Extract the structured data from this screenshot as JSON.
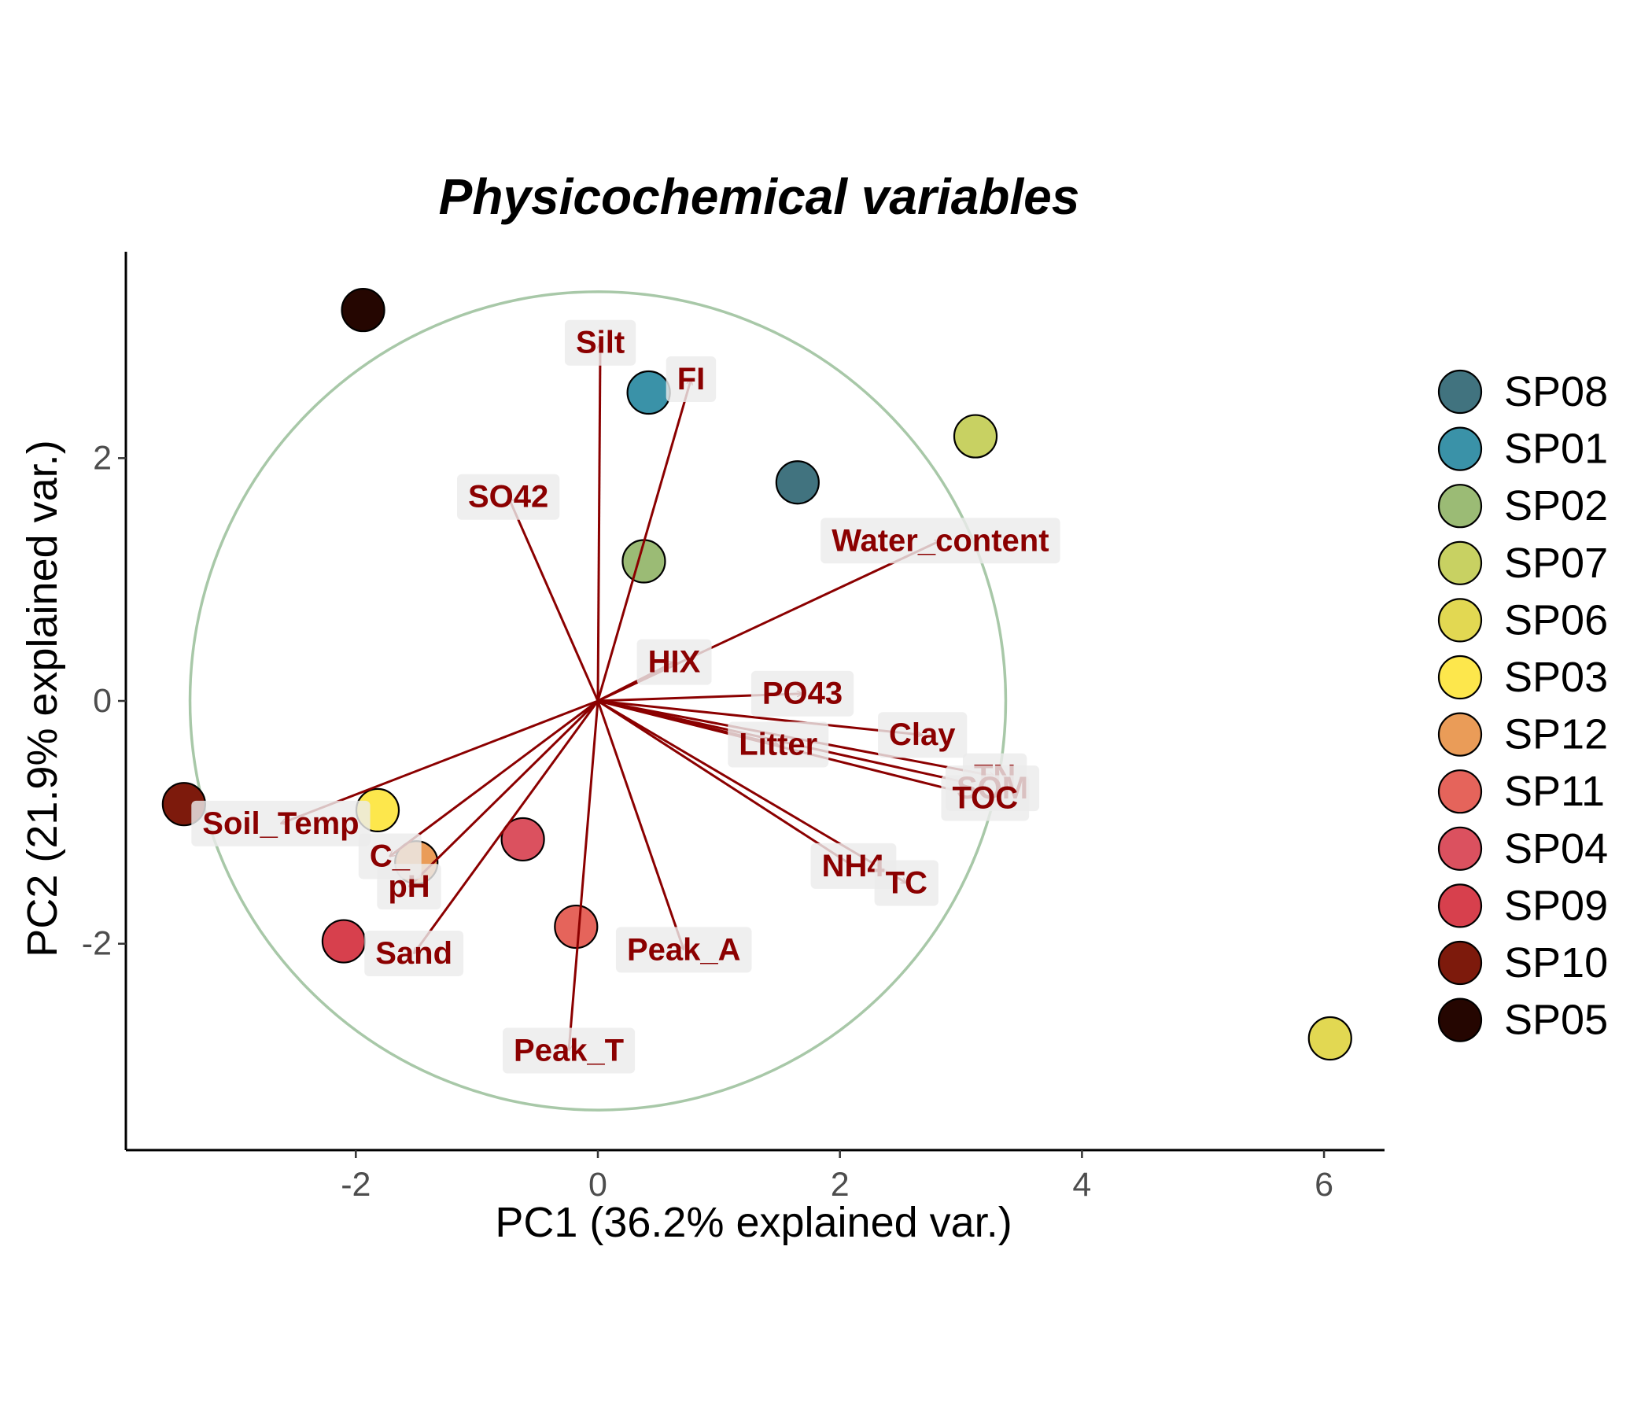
{
  "chart_data": {
    "type": "scatter",
    "subtype": "pca-biplot",
    "title": "Physicochemical variables",
    "xlabel": "PC1 (36.2% explained var.)",
    "ylabel": "PC2 (21.9% explained var.)",
    "xlim": [
      -3.9,
      6.5
    ],
    "ylim": [
      -3.7,
      3.7
    ],
    "xticks": [
      -2,
      0,
      2,
      4,
      6
    ],
    "yticks": [
      -2,
      0,
      2
    ],
    "grid": false,
    "legend_position": "right",
    "correlation_circle": {
      "radius": 3.37,
      "color": "#a8c8a8"
    },
    "arrow_color": "#8b0000",
    "points": [
      {
        "name": "SP08",
        "x": 1.65,
        "y": 1.8,
        "color": "#41737f"
      },
      {
        "name": "SP01",
        "x": 0.42,
        "y": 2.54,
        "color": "#3a92a8"
      },
      {
        "name": "SP02",
        "x": 0.38,
        "y": 1.15,
        "color": "#9bbb75"
      },
      {
        "name": "SP07",
        "x": 3.12,
        "y": 2.18,
        "color": "#c8d162"
      },
      {
        "name": "SP06",
        "x": 6.05,
        "y": -2.78,
        "color": "#e2d852"
      },
      {
        "name": "SP03",
        "x": -1.82,
        "y": -0.9,
        "color": "#fde74c"
      },
      {
        "name": "SP12",
        "x": -1.5,
        "y": -1.33,
        "color": "#ea9c58"
      },
      {
        "name": "SP11",
        "x": -0.18,
        "y": -1.86,
        "color": "#e5645b"
      },
      {
        "name": "SP04",
        "x": -0.62,
        "y": -1.14,
        "color": "#db515f"
      },
      {
        "name": "SP09",
        "x": -2.1,
        "y": -1.98,
        "color": "#d7404d"
      },
      {
        "name": "SP10",
        "x": -3.42,
        "y": -0.85,
        "color": "#7d1a0c"
      },
      {
        "name": "SP05",
        "x": -1.94,
        "y": 3.22,
        "color": "#250601"
      }
    ],
    "legend_order": [
      "SP08",
      "SP01",
      "SP02",
      "SP07",
      "SP06",
      "SP03",
      "SP12",
      "SP11",
      "SP04",
      "SP09",
      "SP10",
      "SP05"
    ],
    "loadings": [
      {
        "name": "Silt",
        "x": 0.02,
        "y": 2.95
      },
      {
        "name": "FI",
        "x": 0.77,
        "y": 2.65
      },
      {
        "name": "SO42",
        "x": -0.74,
        "y": 1.68
      },
      {
        "name": "Water_content",
        "x": 2.83,
        "y": 1.32
      },
      {
        "name": "HIX",
        "x": 0.63,
        "y": 0.32
      },
      {
        "name": "PO43",
        "x": 1.69,
        "y": 0.06
      },
      {
        "name": "Clay",
        "x": 2.68,
        "y": -0.28
      },
      {
        "name": "Litter",
        "x": 1.49,
        "y": -0.36
      },
      {
        "name": "TN",
        "x": 3.28,
        "y": -0.62
      },
      {
        "name": "SOM",
        "x": 3.26,
        "y": -0.72
      },
      {
        "name": "TOC",
        "x": 3.2,
        "y": -0.8
      },
      {
        "name": "NH4",
        "x": 2.11,
        "y": -1.36
      },
      {
        "name": "TC",
        "x": 2.55,
        "y": -1.5
      },
      {
        "name": "Peak_A",
        "x": 0.71,
        "y": -2.05
      },
      {
        "name": "Peak_T",
        "x": -0.24,
        "y": -2.88
      },
      {
        "name": "Sand",
        "x": -1.52,
        "y": -2.08
      },
      {
        "name": "pH",
        "x": -1.56,
        "y": -1.53
      },
      {
        "name": "C_",
        "x": -1.72,
        "y": -1.28
      },
      {
        "name": "Soil_Temp",
        "x": -2.62,
        "y": -1.01
      }
    ]
  }
}
